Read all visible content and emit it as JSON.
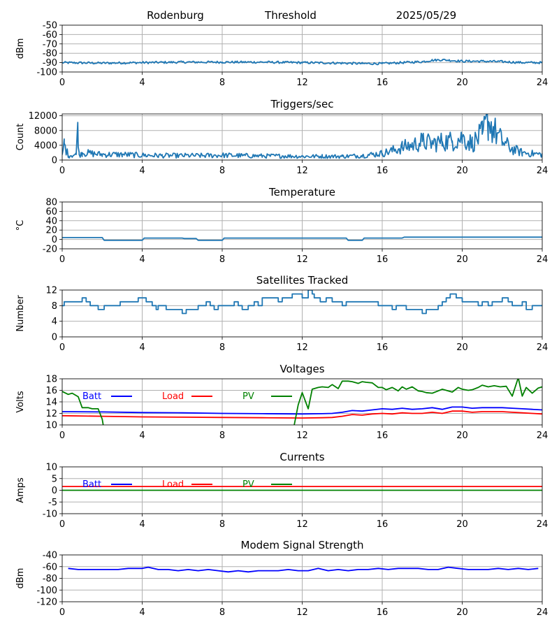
{
  "header": {
    "station": "Rodenburg",
    "mode": "Threshold",
    "date": "2025/05/29"
  },
  "colors": {
    "steel": "#1f77b4",
    "batt": "#0000ff",
    "load": "#ff0000",
    "pv": "#008000",
    "grid": "#b0b0b0"
  },
  "chart_data": [
    {
      "id": "rssi",
      "type": "line",
      "title": "",
      "xlabel": "",
      "ylabel": "dBm",
      "xlim": [
        0,
        24
      ],
      "ylim": [
        -100,
        -50
      ],
      "xticks": [
        "0",
        "4",
        "8",
        "12",
        "16",
        "20",
        "24"
      ],
      "yticks": [
        "-100",
        "-90",
        "-80",
        "-70",
        "-60",
        "-50"
      ],
      "grid": true,
      "series": [
        {
          "color": "steel",
          "noise": 1.2,
          "x": [
            0,
            2,
            4,
            6,
            8,
            10,
            12,
            14,
            15,
            16,
            17,
            18,
            18.5,
            19,
            20,
            21,
            22,
            23,
            24
          ],
          "y": [
            -90,
            -90.5,
            -90,
            -89.5,
            -89.5,
            -89.5,
            -90,
            -90.5,
            -91,
            -91,
            -90,
            -89,
            -87.5,
            -87,
            -88.5,
            -88.5,
            -89,
            -90,
            -90
          ]
        }
      ]
    },
    {
      "id": "triggers",
      "type": "line",
      "title": "Triggers/sec",
      "xlabel": "",
      "ylabel": "Count",
      "xlim": [
        0,
        24
      ],
      "ylim": [
        0,
        12500
      ],
      "xticks": [
        "0",
        "4",
        "8",
        "12",
        "16",
        "20",
        "24"
      ],
      "yticks": [
        "0",
        "4000",
        "8000",
        "12000"
      ],
      "ytick_values": [
        0,
        4000,
        8000,
        12000
      ],
      "grid": true,
      "series": [
        {
          "color": "steel",
          "noise": 500,
          "x": [
            0,
            0.1,
            0.3,
            0.7,
            0.78,
            0.85,
            1,
            2,
            3,
            4,
            5,
            6,
            7,
            8,
            9,
            10,
            11,
            12,
            13,
            14,
            15,
            15.5,
            16,
            16.5,
            17,
            17.5,
            18,
            18.5,
            19,
            19.5,
            20,
            20.5,
            21,
            21.3,
            21.6,
            22,
            22.5,
            23,
            24
          ],
          "y": [
            1500,
            4500,
            1200,
            1500,
            10200,
            1500,
            2000,
            1500,
            1500,
            1300,
            1200,
            1200,
            1200,
            1300,
            1200,
            1100,
            1100,
            1000,
            1000,
            1000,
            1200,
            1500,
            1800,
            2500,
            3500,
            4000,
            5000,
            4500,
            5000,
            5200,
            6000,
            4500,
            7000,
            10500,
            8000,
            5000,
            3000,
            2000,
            1500
          ]
        }
      ]
    },
    {
      "id": "temperature",
      "type": "line",
      "title": "Temperature",
      "xlabel": "",
      "ylabel": "°C",
      "xlim": [
        0,
        24
      ],
      "ylim": [
        -20,
        80
      ],
      "xticks": [
        "0",
        "4",
        "8",
        "12",
        "16",
        "20",
        "24"
      ],
      "yticks": [
        "-20",
        "0",
        "20",
        "40",
        "60",
        "80"
      ],
      "grid": true,
      "series": [
        {
          "color": "steel",
          "x": [
            0,
            2,
            2.1,
            4,
            4.1,
            6,
            6.1,
            6.7,
            6.8,
            8,
            8.1,
            14.2,
            14.3,
            15,
            15.1,
            17,
            17.1,
            24
          ],
          "y": [
            4,
            4,
            -2,
            -2,
            3,
            3,
            2,
            2,
            -2,
            -2,
            3,
            3,
            -2,
            -2,
            3,
            3,
            5,
            5
          ]
        }
      ]
    },
    {
      "id": "satellites",
      "type": "line",
      "step": true,
      "title": "Satellites Tracked",
      "xlabel": "",
      "ylabel": "Number",
      "xlim": [
        0,
        24
      ],
      "ylim": [
        0,
        12
      ],
      "xticks": [
        "0",
        "4",
        "8",
        "12",
        "16",
        "20",
        "24"
      ],
      "yticks": [
        "0",
        "4",
        "8",
        "12"
      ],
      "grid": true,
      "series": [
        {
          "color": "steel",
          "x": [
            0,
            0.1,
            0.7,
            1,
            1.2,
            1.4,
            1.5,
            1.8,
            2.1,
            2.3,
            2.8,
            2.9,
            3.2,
            3.8,
            4,
            4.2,
            4.5,
            4.7,
            4.8,
            5,
            5.2,
            5.7,
            6,
            6.2,
            6.6,
            6.8,
            6.9,
            7.2,
            7.4,
            7.6,
            7.8,
            8,
            8.3,
            8.6,
            8.8,
            9,
            9.3,
            9.6,
            9.8,
            10,
            10.5,
            10.8,
            11,
            11.5,
            12,
            12.3,
            12.5,
            12.6,
            12.9,
            13.2,
            13.5,
            14,
            14.2,
            15,
            15.5,
            15.8,
            16.2,
            16.5,
            16.7,
            16.9,
            17.2,
            17.5,
            18,
            18.2,
            18.5,
            18.8,
            19,
            19.2,
            19.4,
            19.7,
            20,
            20.5,
            20.8,
            21,
            21.3,
            21.5,
            21.9,
            22,
            22.3,
            22.5,
            22.8,
            23,
            23.2,
            23.5,
            23.8,
            24
          ],
          "y": [
            8,
            9,
            9,
            10,
            9,
            8,
            8,
            7,
            8,
            8,
            8,
            9,
            9,
            10,
            10,
            9,
            8,
            7,
            8,
            8,
            7,
            7,
            6,
            7,
            7,
            8,
            8,
            9,
            8,
            7,
            8,
            8,
            8,
            9,
            8,
            7,
            8,
            9,
            8,
            10,
            10,
            9,
            10,
            11,
            10,
            12,
            11,
            10,
            9,
            10,
            9,
            8,
            9,
            9,
            9,
            8,
            8,
            7,
            8,
            8,
            7,
            7,
            6,
            7,
            7,
            8,
            9,
            10,
            11,
            10,
            9,
            9,
            8,
            9,
            8,
            9,
            9,
            10,
            9,
            8,
            8,
            9,
            7,
            8,
            8,
            8
          ]
        }
      ]
    },
    {
      "id": "voltages",
      "type": "line",
      "title": "Voltages",
      "xlabel": "",
      "ylabel": "Volts",
      "xlim": [
        0,
        24
      ],
      "ylim": [
        10,
        18
      ],
      "xticks": [
        "0",
        "4",
        "8",
        "12",
        "16",
        "20",
        "24"
      ],
      "yticks": [
        "10",
        "12",
        "14",
        "16",
        "18"
      ],
      "grid": true,
      "legend": [
        {
          "name": "Batt",
          "color": "batt"
        },
        {
          "name": "Load",
          "color": "load"
        },
        {
          "name": "PV",
          "color": "pv"
        }
      ],
      "series": [
        {
          "name": "Batt",
          "color": "batt",
          "x": [
            0,
            2,
            4,
            6,
            8,
            10,
            12,
            13,
            13.5,
            14,
            14.5,
            15,
            15.5,
            16,
            16.5,
            17,
            17.5,
            18,
            18.5,
            19,
            19.5,
            20,
            20.5,
            21,
            21.5,
            22,
            22.5,
            23,
            23.5,
            24
          ],
          "y": [
            12.3,
            12.25,
            12.15,
            12.1,
            12,
            11.95,
            11.9,
            11.95,
            12,
            12.2,
            12.5,
            12.4,
            12.6,
            12.8,
            12.7,
            12.9,
            12.7,
            12.8,
            13,
            12.7,
            13.1,
            13.1,
            12.9,
            13,
            13,
            13,
            12.9,
            12.8,
            12.7,
            12.6
          ]
        },
        {
          "name": "Load",
          "color": "load",
          "x": [
            0,
            2,
            4,
            6,
            8,
            10,
            12,
            13,
            13.5,
            14,
            14.5,
            15,
            15.5,
            16,
            16.5,
            17,
            17.5,
            18,
            18.5,
            19,
            19.5,
            20,
            20.5,
            21,
            21.5,
            22,
            22.5,
            23,
            23.5,
            24
          ],
          "y": [
            11.6,
            11.5,
            11.4,
            11.35,
            11.3,
            11.25,
            11.2,
            11.25,
            11.3,
            11.5,
            11.8,
            11.7,
            11.9,
            12,
            11.9,
            12.1,
            12,
            12,
            12.2,
            12,
            12.4,
            12.4,
            12.2,
            12.3,
            12.3,
            12.3,
            12.2,
            12.1,
            12,
            11.9
          ]
        },
        {
          "name": "PV",
          "color": "pv",
          "x": [
            0,
            0.3,
            0.5,
            0.8,
            1,
            1.3,
            1.5,
            1.8,
            2,
            2.05
          ],
          "y": [
            15.8,
            15.3,
            15.5,
            14.9,
            13,
            13,
            12.8,
            12.8,
            11,
            10
          ]
        },
        {
          "name": "PV",
          "color": "pv",
          "x": [
            11.6,
            11.8,
            12,
            12.3,
            12.5,
            12.8,
            13,
            13.3,
            13.5,
            13.8,
            14,
            14.3,
            14.5,
            14.8,
            15,
            15.2,
            15.5,
            15.8,
            16,
            16.2,
            16.5,
            16.8,
            17,
            17.2,
            17.5,
            17.8,
            18,
            18.2,
            18.5,
            18.8,
            19,
            19.2,
            19.5,
            19.8,
            20,
            20.3,
            20.5,
            20.8,
            21,
            21.3,
            21.6,
            21.9,
            22.2,
            22.5,
            22.8,
            23,
            23.2,
            23.5,
            23.8,
            24
          ],
          "y": [
            10,
            13.5,
            15.6,
            12.8,
            16.2,
            16.5,
            16.6,
            16.5,
            17,
            16.3,
            17.6,
            17.6,
            17.5,
            17.2,
            17.5,
            17.4,
            17.3,
            16.5,
            16.5,
            16.1,
            16.5,
            15.9,
            16.6,
            16.2,
            16.6,
            15.9,
            15.8,
            15.6,
            15.5,
            15.9,
            16.2,
            16,
            15.7,
            16.5,
            16.2,
            16,
            16.1,
            16.5,
            16.9,
            16.6,
            16.8,
            16.6,
            16.7,
            15,
            18.2,
            15,
            16.5,
            15.5,
            16.4,
            16.6
          ]
        }
      ]
    },
    {
      "id": "currents",
      "type": "line",
      "title": "Currents",
      "xlabel": "",
      "ylabel": "Amps",
      "xlim": [
        0,
        24
      ],
      "ylim": [
        -10,
        10
      ],
      "xticks": [
        "0",
        "4",
        "8",
        "12",
        "16",
        "20",
        "24"
      ],
      "yticks": [
        "-10",
        "-5",
        "0",
        "5",
        "10"
      ],
      "grid": true,
      "legend": [
        {
          "name": "Batt",
          "color": "batt"
        },
        {
          "name": "Load",
          "color": "load"
        },
        {
          "name": "PV",
          "color": "pv"
        }
      ],
      "series": [
        {
          "name": "PV",
          "color": "pv",
          "x": [
            0,
            24
          ],
          "y": [
            0,
            0
          ]
        },
        {
          "name": "Load",
          "color": "load",
          "x": [
            0,
            6,
            12,
            18,
            24
          ],
          "y": [
            1.6,
            1.6,
            1.6,
            1.6,
            1.6
          ]
        }
      ]
    },
    {
      "id": "modem",
      "type": "line",
      "title": "Modem Signal Strength",
      "xlabel": "",
      "ylabel": "dBm",
      "xlim": [
        0,
        24
      ],
      "ylim": [
        -120,
        -40
      ],
      "xticks": [
        "0",
        "4",
        "8",
        "12",
        "16",
        "20",
        "24"
      ],
      "yticks": [
        "-120",
        "-100",
        "-80",
        "-60",
        "-40"
      ],
      "grid": true,
      "series": [
        {
          "color": "batt",
          "x": [
            0.3,
            0.8,
            1.3,
            2,
            2.8,
            3.3,
            4,
            4.3,
            4.8,
            5.3,
            5.8,
            6.3,
            6.8,
            7.3,
            7.8,
            8.3,
            8.8,
            9.3,
            9.8,
            10.3,
            10.8,
            11.3,
            11.8,
            12.3,
            12.8,
            13.3,
            13.8,
            14.3,
            14.8,
            15.3,
            15.8,
            16.3,
            16.8,
            17.3,
            17.8,
            18.3,
            18.8,
            19.3,
            19.8,
            20.3,
            20.8,
            21.3,
            21.8,
            22.3,
            22.8,
            23.3,
            23.8
          ],
          "y": [
            -63,
            -65,
            -65,
            -65,
            -65,
            -63,
            -63,
            -61,
            -65,
            -65,
            -67,
            -65,
            -67,
            -65,
            -67,
            -69,
            -67,
            -69,
            -67,
            -67,
            -67,
            -65,
            -67,
            -67,
            -63,
            -67,
            -65,
            -67,
            -65,
            -65,
            -63,
            -65,
            -63,
            -63,
            -63,
            -65,
            -65,
            -61,
            -63,
            -65,
            -65,
            -65,
            -63,
            -65,
            -63,
            -65,
            -63
          ]
        }
      ]
    }
  ]
}
